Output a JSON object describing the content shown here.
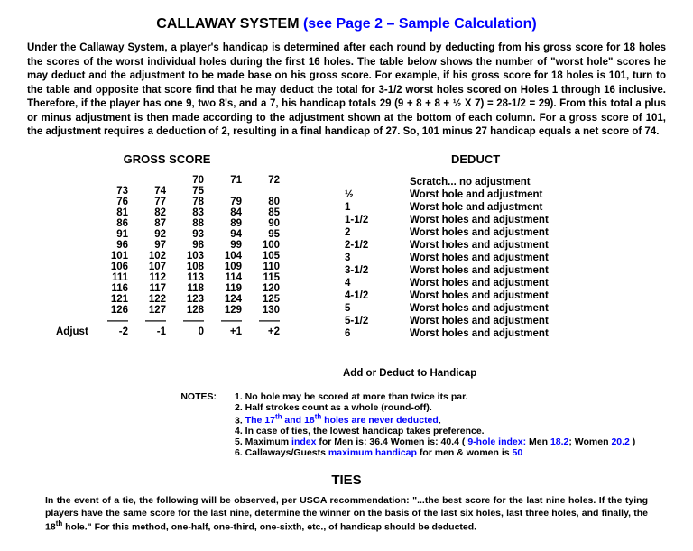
{
  "title_main": "CALLAWAY SYSTEM ",
  "title_link": "(see Page 2 – Sample Calculation)",
  "intro": "Under the Callaway System, a player's handicap is determined after each round by deducting from his gross score for 18 holes the scores of the worst individual holes during the first 16 holes.  The table below shows the number of \"worst hole\" scores he may deduct and the adjustment to be made base on his gross score.  For example, if his gross score for 18 holes is 101, turn to the table and opposite that score find that he may deduct the total for 3-1/2 worst holes scored on Holes 1 through 16 inclusive.  Therefore, if the player has one 9, two 8's, and a 7, his handicap totals 29 (9 + 8 + 8 + ½ X 7) = 28-1/2 = 29).  From this total a plus or minus adjustment is then made according to the adjustment shown at the bottom of each column.  For a gross score of 101, the adjustment requires a deduction of 2, resulting in a final handicap of 27.  So, 101 minus 27 handicap equals a net score of 74.",
  "gross_header": "GROSS SCORE",
  "deduct_header": "DEDUCT",
  "score_rows": [
    [
      "",
      "",
      "70",
      "71",
      "72"
    ],
    [
      "73",
      "74",
      "75",
      "",
      ""
    ],
    [
      "76",
      "77",
      "78",
      "79",
      "80"
    ],
    [
      "81",
      "82",
      "83",
      "84",
      "85"
    ],
    [
      "86",
      "87",
      "88",
      "89",
      "90"
    ],
    [
      "91",
      "92",
      "93",
      "94",
      "95"
    ],
    [
      "96",
      "97",
      "98",
      "99",
      "100"
    ],
    [
      "101",
      "102",
      "103",
      "104",
      "105"
    ],
    [
      "106",
      "107",
      "108",
      "109",
      "110"
    ],
    [
      "111",
      "112",
      "113",
      "114",
      "115"
    ],
    [
      "116",
      "117",
      "118",
      "119",
      "120"
    ],
    [
      "121",
      "122",
      "123",
      "124",
      "125"
    ],
    [
      "126",
      "127",
      "128",
      "129",
      "130"
    ]
  ],
  "adjust_label": "Adjust",
  "adjust_row": [
    "-2",
    "-1",
    "0",
    "+1",
    "+2"
  ],
  "deduct_rows": [
    [
      "",
      "Scratch... no adjustment"
    ],
    [
      "½",
      "Worst hole and adjustment"
    ],
    [
      "1",
      "Worst hole and adjustment"
    ],
    [
      "1-1/2",
      "Worst holes and adjustment"
    ],
    [
      "2",
      "Worst holes and adjustment"
    ],
    [
      "2-1/2",
      "Worst holes and adjustment"
    ],
    [
      "3",
      "Worst holes and adjustment"
    ],
    [
      "3-1/2",
      "Worst holes and adjustment"
    ],
    [
      "4",
      "Worst holes and adjustment"
    ],
    [
      "4-1/2",
      "Worst holes and adjustment"
    ],
    [
      "5",
      "Worst holes and adjustment"
    ],
    [
      "5-1/2",
      "Worst holes and adjustment"
    ],
    [
      "6",
      "Worst holes and adjustment"
    ]
  ],
  "add_deduct_line": "Add or Deduct to Handicap",
  "notes_label": "NOTES:",
  "notes": {
    "n1": "1.   No hole may be scored at more than twice its par.",
    "n2": "2.   Half strokes count as a whole (round-off).",
    "n3a": "3.   ",
    "n3b": "The 17",
    "n3c": " and 18",
    "n3d": " holes are never deducted",
    "n3e": ".",
    "n4": "4.   In case of ties, the lowest handicap takes preference.",
    "n5a": "5.   Maximum ",
    "n5b": "index",
    "n5c": " for Men is:  36.4   Women is:  40.4   ( ",
    "n5d": "9-hole index:",
    "n5e": "  Men ",
    "n5f": "18.2",
    "n5g": "; Women ",
    "n5h": "20.2",
    "n5i": " )",
    "n6a": "6.   Callaways/Guests ",
    "n6b": "maximum handicap",
    "n6c": " for men & women is ",
    "n6d": "50"
  },
  "ties_header": "TIES",
  "ties_body_a": "In the event of a tie, the following will be observed, per USGA recommendation:  \"...the best score for the last nine holes.  If the tying players have the same score for the last nine, determine the winner on the basis of the last six holes, last three holes, and finally, the 18",
  "ties_body_b": " hole.\"  For this method, one-half, one-third, one-sixth, etc., of handicap should be deducted."
}
